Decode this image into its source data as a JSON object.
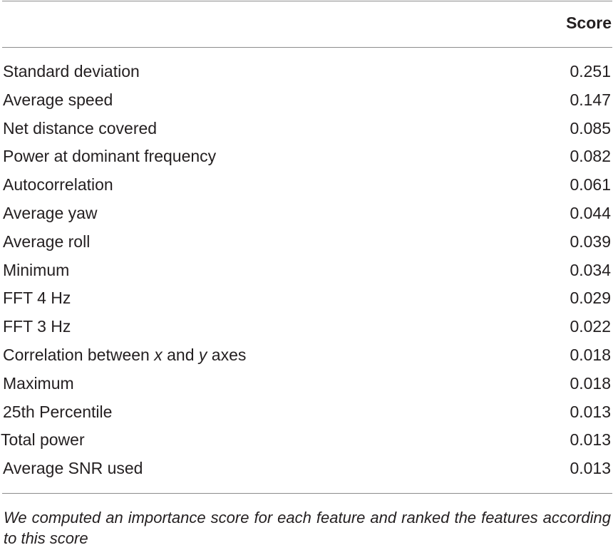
{
  "table": {
    "header": {
      "feature": "",
      "score": "Score"
    },
    "rows": [
      {
        "feature": "Standard deviation",
        "score": "0.251"
      },
      {
        "feature": "Average speed",
        "score": "0.147"
      },
      {
        "feature": "Net distance covered",
        "score": "0.085"
      },
      {
        "feature": "Power at dominant frequency",
        "score": "0.082"
      },
      {
        "feature": "Autocorrelation",
        "score": "0.061"
      },
      {
        "feature": "Average yaw",
        "score": "0.044"
      },
      {
        "feature": "Average roll",
        "score": "0.039"
      },
      {
        "feature": "Minimum",
        "score": "0.034"
      },
      {
        "feature": "FFT 4 Hz",
        "score": "0.029"
      },
      {
        "feature": "FFT 3 Hz",
        "score": "0.022"
      },
      {
        "feature": "Correlation between x and y axes",
        "score": "0.018"
      },
      {
        "feature": "Maximum",
        "score": "0.018"
      },
      {
        "feature": "25th Percentile",
        "score": "0.013"
      },
      {
        "feature": "Total power",
        "score": "0.013"
      },
      {
        "feature": "Average SNR used",
        "score": "0.013"
      }
    ]
  },
  "caption": "We computed an importance score for each feature and ranked the features according to this score"
}
